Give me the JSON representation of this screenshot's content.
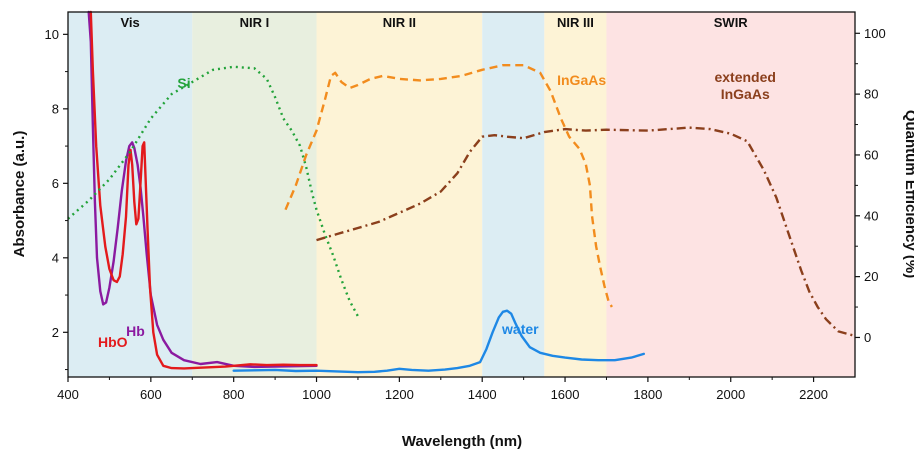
{
  "chart_data": {
    "type": "line",
    "xlabel": "Wavelength (nm)",
    "ylabel_left": "Absorbance (a.u.)",
    "ylabel_right": "Quantum Efficiency (%)",
    "xlim": [
      400,
      2300
    ],
    "ylim_left": [
      0.8,
      10.6
    ],
    "ylim_right": [
      -13,
      107
    ],
    "x_ticks": [
      400,
      600,
      800,
      1000,
      1200,
      1400,
      1600,
      1800,
      2000,
      2200
    ],
    "y_left_ticks": [
      2,
      4,
      6,
      8,
      10
    ],
    "y_right_ticks": [
      0,
      20,
      40,
      60,
      80,
      100
    ],
    "grid": false,
    "bands": [
      {
        "label": "Vis",
        "start": 400,
        "end": 700,
        "color": "#dcedf3"
      },
      {
        "label": "NIR I",
        "start": 700,
        "end": 1000,
        "color": "#e8efdf"
      },
      {
        "label": "NIR II",
        "start": 1000,
        "end": 1400,
        "color": "#fdf3d6"
      },
      {
        "label": "",
        "start": 1400,
        "end": 1550,
        "color": "#dcedf3"
      },
      {
        "label": "NIR III",
        "start": 1550,
        "end": 1700,
        "color": "#fdf3d6"
      },
      {
        "label": "SWIR",
        "start": 1700,
        "end": 2300,
        "color": "#fde3e3"
      }
    ],
    "series": [
      {
        "name": "Hb",
        "axis": "left",
        "color": "#8b1aa0",
        "dash": "",
        "label_pos": {
          "x": 563,
          "y": 1.9
        },
        "points": [
          [
            450,
            10.6
          ],
          [
            455,
            9.8
          ],
          [
            460,
            7.5
          ],
          [
            465,
            5.5
          ],
          [
            470,
            4.0
          ],
          [
            478,
            3.1
          ],
          [
            485,
            2.75
          ],
          [
            492,
            2.8
          ],
          [
            500,
            3.2
          ],
          [
            510,
            3.9
          ],
          [
            520,
            4.8
          ],
          [
            530,
            5.8
          ],
          [
            540,
            6.6
          ],
          [
            548,
            7.0
          ],
          [
            555,
            7.1
          ],
          [
            560,
            6.95
          ],
          [
            568,
            6.5
          ],
          [
            575,
            5.9
          ],
          [
            582,
            5.1
          ],
          [
            590,
            4.1
          ],
          [
            600,
            3.0
          ],
          [
            615,
            2.2
          ],
          [
            630,
            1.8
          ],
          [
            650,
            1.45
          ],
          [
            680,
            1.25
          ],
          [
            720,
            1.15
          ],
          [
            760,
            1.2
          ],
          [
            800,
            1.1
          ],
          [
            850,
            1.07
          ],
          [
            900,
            1.08
          ],
          [
            950,
            1.09
          ],
          [
            1000,
            1.1
          ]
        ]
      },
      {
        "name": "HbO",
        "axis": "left",
        "color": "#e31a1c",
        "dash": "",
        "label_pos": {
          "x": 508,
          "y": 1.6
        },
        "points": [
          [
            455,
            10.6
          ],
          [
            460,
            9.0
          ],
          [
            468,
            7.0
          ],
          [
            478,
            5.4
          ],
          [
            490,
            4.3
          ],
          [
            500,
            3.7
          ],
          [
            510,
            3.4
          ],
          [
            518,
            3.35
          ],
          [
            525,
            3.5
          ],
          [
            532,
            4.1
          ],
          [
            540,
            5.1
          ],
          [
            546,
            6.5
          ],
          [
            551,
            6.9
          ],
          [
            555,
            6.5
          ],
          [
            560,
            5.5
          ],
          [
            565,
            4.9
          ],
          [
            570,
            5.05
          ],
          [
            575,
            6.0
          ],
          [
            580,
            7.0
          ],
          [
            584,
            7.1
          ],
          [
            587,
            6.2
          ],
          [
            592,
            4.8
          ],
          [
            598,
            3.2
          ],
          [
            606,
            2.0
          ],
          [
            615,
            1.4
          ],
          [
            630,
            1.1
          ],
          [
            650,
            1.04
          ],
          [
            680,
            1.03
          ],
          [
            720,
            1.05
          ],
          [
            780,
            1.08
          ],
          [
            840,
            1.14
          ],
          [
            880,
            1.12
          ],
          [
            920,
            1.13
          ],
          [
            960,
            1.12
          ],
          [
            1000,
            1.12
          ]
        ]
      },
      {
        "name": "water",
        "axis": "left",
        "color": "#1e88e5",
        "dash": "",
        "label_pos": {
          "x": 1492,
          "y": 1.95
        },
        "points": [
          [
            800,
            0.97
          ],
          [
            850,
            0.98
          ],
          [
            900,
            0.99
          ],
          [
            950,
            0.96
          ],
          [
            1000,
            0.97
          ],
          [
            1050,
            0.95
          ],
          [
            1100,
            0.93
          ],
          [
            1140,
            0.94
          ],
          [
            1170,
            0.97
          ],
          [
            1200,
            1.02
          ],
          [
            1230,
            0.99
          ],
          [
            1270,
            0.97
          ],
          [
            1310,
            1.0
          ],
          [
            1340,
            1.04
          ],
          [
            1370,
            1.1
          ],
          [
            1395,
            1.2
          ],
          [
            1410,
            1.55
          ],
          [
            1425,
            2.0
          ],
          [
            1440,
            2.4
          ],
          [
            1450,
            2.55
          ],
          [
            1460,
            2.58
          ],
          [
            1470,
            2.5
          ],
          [
            1480,
            2.25
          ],
          [
            1495,
            1.9
          ],
          [
            1515,
            1.6
          ],
          [
            1540,
            1.45
          ],
          [
            1570,
            1.37
          ],
          [
            1600,
            1.32
          ],
          [
            1640,
            1.27
          ],
          [
            1680,
            1.25
          ],
          [
            1720,
            1.25
          ],
          [
            1760,
            1.32
          ],
          [
            1790,
            1.42
          ]
        ]
      },
      {
        "name": "Si",
        "axis": "right",
        "color": "#23a33a",
        "dash": "2,4",
        "label_pos": {
          "x": 680,
          "y": 82
        },
        "points": [
          [
            400,
            39
          ],
          [
            450,
            45
          ],
          [
            500,
            52
          ],
          [
            550,
            61
          ],
          [
            600,
            72
          ],
          [
            650,
            80
          ],
          [
            700,
            84
          ],
          [
            750,
            88
          ],
          [
            800,
            89
          ],
          [
            850,
            88.5
          ],
          [
            880,
            85
          ],
          [
            900,
            79
          ],
          [
            920,
            72
          ],
          [
            940,
            68
          ],
          [
            960,
            63
          ],
          [
            975,
            56
          ],
          [
            990,
            47
          ],
          [
            1000,
            42
          ],
          [
            1020,
            34
          ],
          [
            1040,
            27
          ],
          [
            1060,
            19
          ],
          [
            1080,
            12
          ],
          [
            1100,
            7
          ]
        ]
      },
      {
        "name": "InGaAs",
        "axis": "right",
        "color": "#f28c1e",
        "dash": "8,5",
        "label_pos": {
          "x": 1640,
          "y": 83
        },
        "points": [
          [
            925,
            42
          ],
          [
            950,
            50
          ],
          [
            975,
            60
          ],
          [
            1000,
            68
          ],
          [
            1020,
            78
          ],
          [
            1035,
            86
          ],
          [
            1045,
            87
          ],
          [
            1060,
            84
          ],
          [
            1080,
            82
          ],
          [
            1100,
            83
          ],
          [
            1130,
            85
          ],
          [
            1160,
            86
          ],
          [
            1200,
            85
          ],
          [
            1250,
            84.5
          ],
          [
            1300,
            85
          ],
          [
            1350,
            86
          ],
          [
            1400,
            88
          ],
          [
            1450,
            89.5
          ],
          [
            1500,
            89.5
          ],
          [
            1540,
            87
          ],
          [
            1565,
            81
          ],
          [
            1590,
            72
          ],
          [
            1610,
            66
          ],
          [
            1635,
            62
          ],
          [
            1650,
            57
          ],
          [
            1660,
            50
          ],
          [
            1665,
            40
          ],
          [
            1675,
            30
          ],
          [
            1685,
            23
          ],
          [
            1695,
            17
          ],
          [
            1705,
            12
          ],
          [
            1713,
            10
          ]
        ]
      },
      {
        "name": "extended InGaAs",
        "axis": "right",
        "color": "#8b3f1c",
        "dash": "9,4,2,4",
        "label_pos": {
          "x": 2035,
          "y": 84
        },
        "points": [
          [
            1000,
            32
          ],
          [
            1050,
            34
          ],
          [
            1100,
            36
          ],
          [
            1150,
            38
          ],
          [
            1200,
            41
          ],
          [
            1250,
            44
          ],
          [
            1300,
            48
          ],
          [
            1340,
            54
          ],
          [
            1370,
            61
          ],
          [
            1400,
            66
          ],
          [
            1430,
            66.5
          ],
          [
            1460,
            66
          ],
          [
            1500,
            65.5
          ],
          [
            1550,
            67.5
          ],
          [
            1600,
            68.5
          ],
          [
            1650,
            68
          ],
          [
            1700,
            68.3
          ],
          [
            1800,
            68
          ],
          [
            1900,
            69
          ],
          [
            1950,
            68.5
          ],
          [
            2000,
            67
          ],
          [
            2040,
            64.5
          ],
          [
            2080,
            55
          ],
          [
            2110,
            46
          ],
          [
            2140,
            34
          ],
          [
            2170,
            22
          ],
          [
            2190,
            15
          ],
          [
            2210,
            10
          ],
          [
            2230,
            6
          ],
          [
            2260,
            2
          ],
          [
            2300,
            0.5
          ]
        ]
      }
    ]
  }
}
